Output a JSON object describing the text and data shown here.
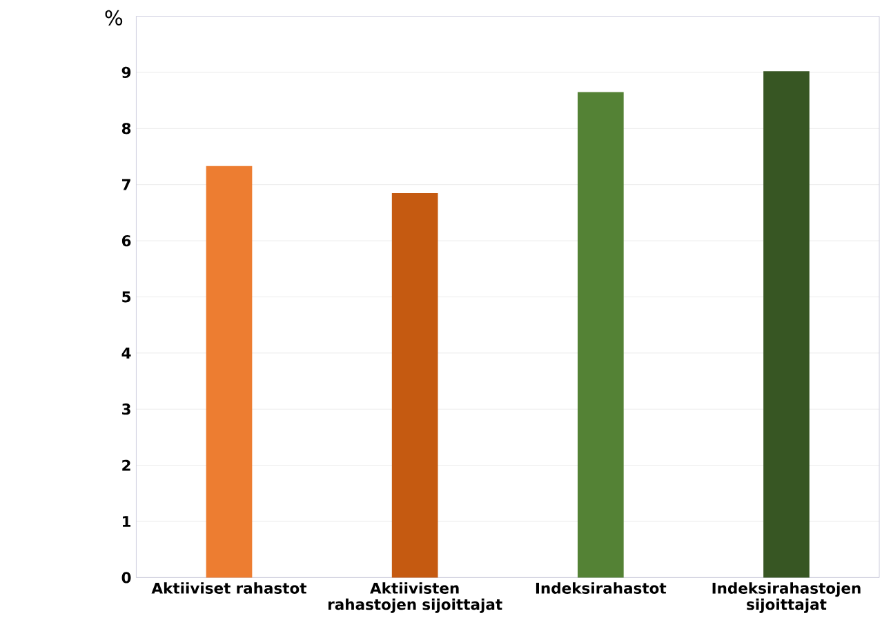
{
  "chart_data": {
    "type": "bar",
    "ylabel": "%",
    "categories": [
      "Aktiiviset rahastot",
      "Aktiivisten rahastojen sijoittajat",
      "Indeksirahastot",
      "Indeksirahastojen sijoittajat"
    ],
    "values": [
      7.33,
      6.85,
      8.65,
      9.02
    ],
    "colors": [
      "#ed7d31",
      "#c55a11",
      "#548235",
      "#375623"
    ],
    "ylim": [
      0,
      10
    ],
    "yticks": [
      0,
      1,
      2,
      3,
      4,
      5,
      6,
      7,
      8,
      9
    ],
    "grid": "y"
  }
}
